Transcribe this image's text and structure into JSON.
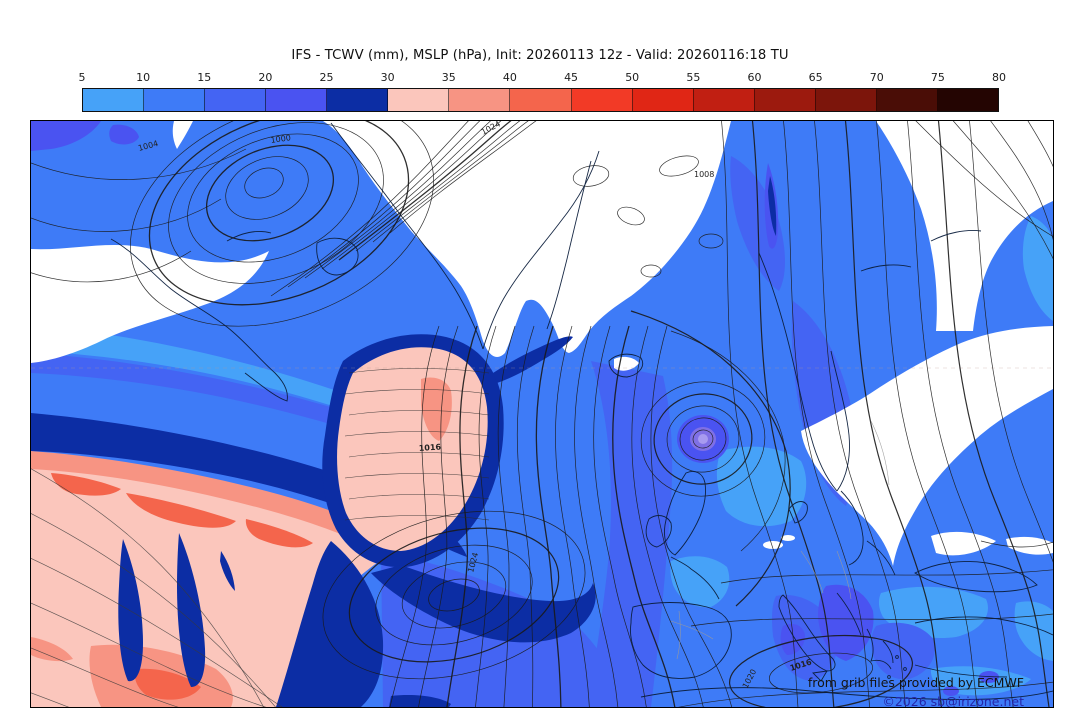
{
  "header": {
    "title": "IFS - TCWV (mm), MSLP (hPa), Init: 20260113 12z - Valid: 20260116:18 TU"
  },
  "colorbar": {
    "ticks": [
      "5",
      "10",
      "15",
      "20",
      "25",
      "30",
      "35",
      "40",
      "45",
      "50",
      "55",
      "60",
      "65",
      "70",
      "75",
      "80"
    ],
    "colors": [
      "#46A2F8",
      "#3E7BF7",
      "#4464F3",
      "#4A53F1",
      "#0C2DA4",
      "#FBC6BC",
      "#F79483",
      "#F4654C",
      "#F23A26",
      "#E02615",
      "#C11F12",
      "#9C1A0E",
      "#7C150B",
      "#4A0D06",
      "#240502"
    ]
  },
  "map": {
    "shaded_variable": "TCWV (mm)",
    "contour_variable": "MSLP (hPa)",
    "pressure_labels": [
      "1004",
      "1000",
      "1024",
      "1008",
      "1016",
      "1024",
      "1016",
      "1020"
    ],
    "attribution_line1": "from grib files provided by ECMWF",
    "attribution_line2": "©2026 sb@irizone.net"
  }
}
